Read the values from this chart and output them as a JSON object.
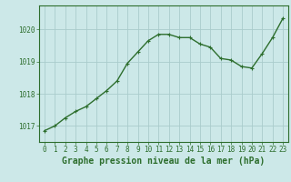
{
  "x": [
    0,
    1,
    2,
    3,
    4,
    5,
    6,
    7,
    8,
    9,
    10,
    11,
    12,
    13,
    14,
    15,
    16,
    17,
    18,
    19,
    20,
    21,
    22,
    23
  ],
  "y": [
    1016.85,
    1017.0,
    1017.25,
    1017.45,
    1017.6,
    1017.85,
    1018.1,
    1018.4,
    1018.95,
    1019.3,
    1019.65,
    1019.85,
    1019.85,
    1019.75,
    1019.75,
    1019.55,
    1019.45,
    1019.1,
    1019.05,
    1018.85,
    1018.8,
    1019.25,
    1019.75,
    1020.35
  ],
  "line_color": "#2d6e2d",
  "marker": "+",
  "marker_size": 3.5,
  "marker_color": "#2d6e2d",
  "bg_color": "#cce8e8",
  "grid_color": "#aacccc",
  "ylabel_ticks": [
    1017,
    1018,
    1019,
    1020
  ],
  "xlabel": "Graphe pression niveau de la mer (hPa)",
  "xlabel_color": "#2d6e2d",
  "xlabel_fontsize": 7,
  "ylim": [
    1016.5,
    1020.75
  ],
  "xlim": [
    -0.5,
    23.5
  ],
  "tick_color": "#2d6e2d",
  "tick_fontsize": 5.5,
  "line_width": 1.0
}
